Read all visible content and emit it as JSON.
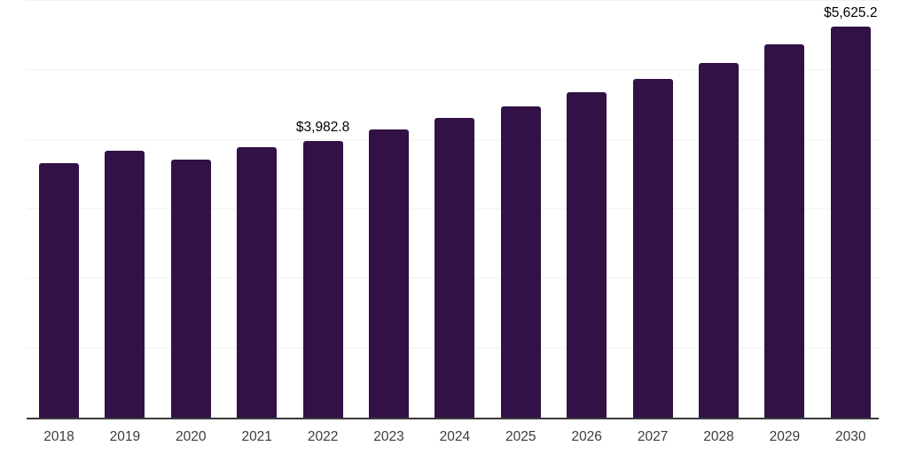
{
  "chart_data": {
    "type": "bar",
    "title": "",
    "xlabel": "",
    "ylabel": "",
    "categories": [
      "2018",
      "2019",
      "2020",
      "2021",
      "2022",
      "2023",
      "2024",
      "2025",
      "2026",
      "2027",
      "2028",
      "2029",
      "2030"
    ],
    "values": [
      3670,
      3845,
      3720,
      3890,
      3982.8,
      4145,
      4315,
      4485,
      4680,
      4880,
      5110,
      5370,
      5625.2
    ],
    "data_labels": [
      "",
      "",
      "",
      "",
      "$3,982.8",
      "",
      "",
      "",
      "",
      "",
      "",
      "",
      "$5,625.2"
    ],
    "ylim": [
      0,
      6000
    ],
    "grid_step": 1000,
    "grid": "horizontal",
    "legend_position": "none",
    "bar_color": "#321146",
    "gridline_color": "#f2f2f2",
    "axis_line_color": "#3a3a3a",
    "tick_label_color": "#3c3c3c",
    "data_label_color": "#000000",
    "background_color": "#ffffff"
  }
}
